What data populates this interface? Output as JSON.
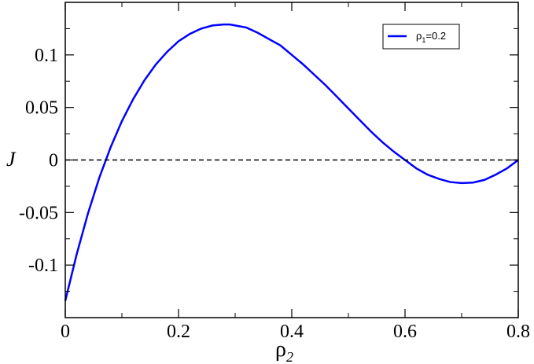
{
  "chart_data": {
    "type": "line",
    "xlim": [
      0,
      0.8
    ],
    "ylim": [
      -0.15,
      0.15
    ],
    "x_ticks": [
      0,
      0.2,
      0.4,
      0.6,
      0.8
    ],
    "x_tick_labels": [
      "0",
      "0.2",
      "0.4",
      "0.6",
      "0.8"
    ],
    "x_minor_ticks": [
      0.1,
      0.3,
      0.5,
      0.7
    ],
    "y_ticks": [
      -0.1,
      -0.05,
      0,
      0.05,
      0.1
    ],
    "y_tick_labels": [
      "-0.1",
      "-0.05",
      "0",
      "0.05",
      "0.1"
    ],
    "y_minor_ticks": [
      -0.125,
      -0.075,
      -0.025,
      0.025,
      0.075,
      0.125
    ],
    "xlabel": {
      "main": "ρ",
      "sub": "2"
    },
    "ylabel": "J",
    "grid": false,
    "legend_placement": "top-right",
    "series": [
      {
        "name": {
          "main": "ρ",
          "sub": "1",
          "rest": "=0.2"
        },
        "color": "#0000ff",
        "style": "solid",
        "x": [
          0,
          0.02,
          0.04,
          0.06,
          0.08,
          0.1,
          0.12,
          0.14,
          0.16,
          0.18,
          0.2,
          0.22,
          0.24,
          0.26,
          0.28,
          0.29,
          0.3,
          0.32,
          0.34,
          0.36,
          0.38,
          0.4,
          0.42,
          0.44,
          0.46,
          0.48,
          0.5,
          0.52,
          0.54,
          0.56,
          0.58,
          0.6,
          0.62,
          0.64,
          0.66,
          0.68,
          0.7,
          0.72,
          0.74,
          0.76,
          0.78,
          0.8
        ],
        "y": [
          -0.134,
          -0.09,
          -0.051,
          -0.017,
          0.012,
          0.037,
          0.058,
          0.076,
          0.091,
          0.103,
          0.113,
          0.12,
          0.125,
          0.128,
          0.129,
          0.129,
          0.128,
          0.126,
          0.121,
          0.115,
          0.109,
          0.1,
          0.091,
          0.081,
          0.071,
          0.06,
          0.049,
          0.038,
          0.027,
          0.017,
          0.008,
          0.0,
          -0.008,
          -0.014,
          -0.018,
          -0.021,
          -0.022,
          -0.0215,
          -0.019,
          -0.014,
          -0.008,
          0.0
        ]
      },
      {
        "name": "",
        "color": "#000000",
        "style": "dashed",
        "x": [
          0,
          0.8
        ],
        "y": [
          0,
          0
        ]
      }
    ]
  }
}
